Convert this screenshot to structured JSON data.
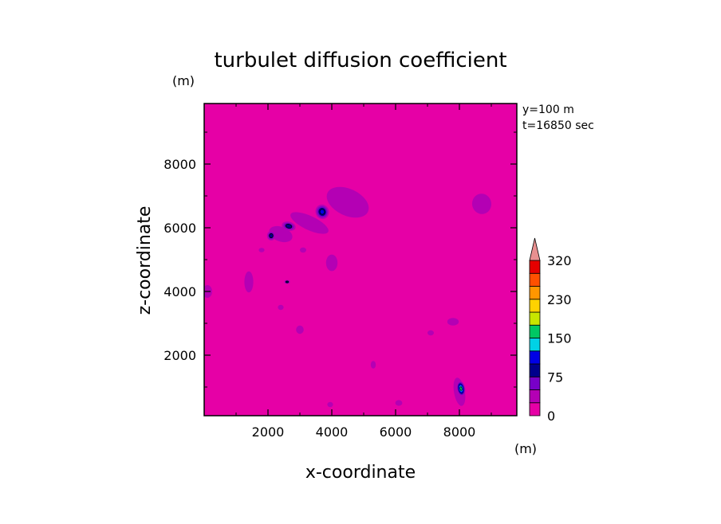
{
  "chart_data": {
    "type": "heatmap",
    "subtype": "filled-contour",
    "title": "turbulet diffusion coefficient",
    "xlabel": "x-coordinate",
    "ylabel": "z-coordinate",
    "x_unit": "(m)",
    "y_unit": "(m)",
    "annotations": [
      "y=100 m",
      "t=16850 sec"
    ],
    "xlim": [
      0,
      9800
    ],
    "ylim": [
      100,
      9900
    ],
    "x_ticks": [
      2000,
      4000,
      6000,
      8000
    ],
    "y_ticks": [
      2000,
      4000,
      6000,
      8000
    ],
    "background_value_range": [
      0,
      25
    ],
    "colorbar": {
      "levels": [
        0,
        25,
        50,
        75,
        100,
        125,
        150,
        175,
        200,
        230,
        260,
        290,
        320
      ],
      "tick_labels": [
        "0",
        "75",
        "150",
        "230",
        "320"
      ],
      "tick_values": [
        0,
        75,
        150,
        230,
        320
      ],
      "colors": [
        "#e600a6",
        "#b400b4",
        "#7800c8",
        "#00008c",
        "#0000e6",
        "#00d2e6",
        "#00c864",
        "#c8e600",
        "#ffd200",
        "#ff9600",
        "#ff5000",
        "#e60000"
      ],
      "extend_max_color": "#e89090"
    },
    "features": [
      {
        "kind": "patch",
        "x": 4500,
        "z": 6800,
        "rx": 700,
        "rz": 420,
        "rotate": -25,
        "level_max": 25
      },
      {
        "kind": "patch",
        "x": 3300,
        "z": 6150,
        "rx": 650,
        "rz": 220,
        "rotate": -25,
        "level_max": 25
      },
      {
        "kind": "patch",
        "x": 2400,
        "z": 5800,
        "rx": 380,
        "rz": 230,
        "rotate": -20,
        "level_max": 25
      },
      {
        "kind": "patch",
        "x": 8700,
        "z": 6750,
        "rx": 300,
        "rz": 320,
        "rotate": 10,
        "level_max": 25
      },
      {
        "kind": "patch",
        "x": 1400,
        "z": 4300,
        "rx": 140,
        "rz": 330,
        "rotate": 0,
        "level_max": 25
      },
      {
        "kind": "patch",
        "x": 4000,
        "z": 4900,
        "rx": 180,
        "rz": 260,
        "rotate": 0,
        "level_max": 25
      },
      {
        "kind": "patch",
        "x": 8000,
        "z": 850,
        "rx": 170,
        "rz": 450,
        "rotate": 10,
        "level_max": 25
      },
      {
        "kind": "peak",
        "x": 3700,
        "z": 6500,
        "rx": 210,
        "rz": 230,
        "rotate": 20,
        "value": 100
      },
      {
        "kind": "peak",
        "x": 2650,
        "z": 6050,
        "rx": 220,
        "rz": 140,
        "rotate": -15,
        "value": 80
      },
      {
        "kind": "peak",
        "x": 2100,
        "z": 5750,
        "rx": 130,
        "rz": 150,
        "rotate": 0,
        "value": 75
      },
      {
        "kind": "peak",
        "x": 2600,
        "z": 4300,
        "rx": 90,
        "rz": 60,
        "rotate": 0,
        "value": 80
      },
      {
        "kind": "peak",
        "x": 8050,
        "z": 950,
        "rx": 130,
        "rz": 240,
        "rotate": 10,
        "value": 150
      },
      {
        "kind": "patch",
        "x": 3000,
        "z": 2800,
        "rx": 120,
        "rz": 130,
        "rotate": 0,
        "level_max": 25
      },
      {
        "kind": "patch",
        "x": 7800,
        "z": 3050,
        "rx": 180,
        "rz": 120,
        "rotate": 0,
        "level_max": 25
      },
      {
        "kind": "patch",
        "x": 6100,
        "z": 500,
        "rx": 110,
        "rz": 90,
        "rotate": 0,
        "level_max": 25
      },
      {
        "kind": "patch",
        "x": 3950,
        "z": 450,
        "rx": 90,
        "rz": 80,
        "rotate": 0,
        "level_max": 25
      },
      {
        "kind": "patch",
        "x": 5300,
        "z": 1700,
        "rx": 80,
        "rz": 120,
        "rotate": 0,
        "level_max": 25
      },
      {
        "kind": "patch",
        "x": 7100,
        "z": 2700,
        "rx": 100,
        "rz": 80,
        "rotate": 0,
        "level_max": 25
      },
      {
        "kind": "patch",
        "x": 3100,
        "z": 5300,
        "rx": 100,
        "rz": 80,
        "rotate": 0,
        "level_max": 25
      },
      {
        "kind": "patch",
        "x": 1800,
        "z": 5300,
        "rx": 90,
        "rz": 70,
        "rotate": 0,
        "level_max": 25
      },
      {
        "kind": "patch",
        "x": 100,
        "z": 4000,
        "rx": 150,
        "rz": 200,
        "rotate": 0,
        "level_max": 25
      },
      {
        "kind": "patch",
        "x": 2400,
        "z": 3500,
        "rx": 90,
        "rz": 80,
        "rotate": 0,
        "level_max": 25
      }
    ]
  }
}
